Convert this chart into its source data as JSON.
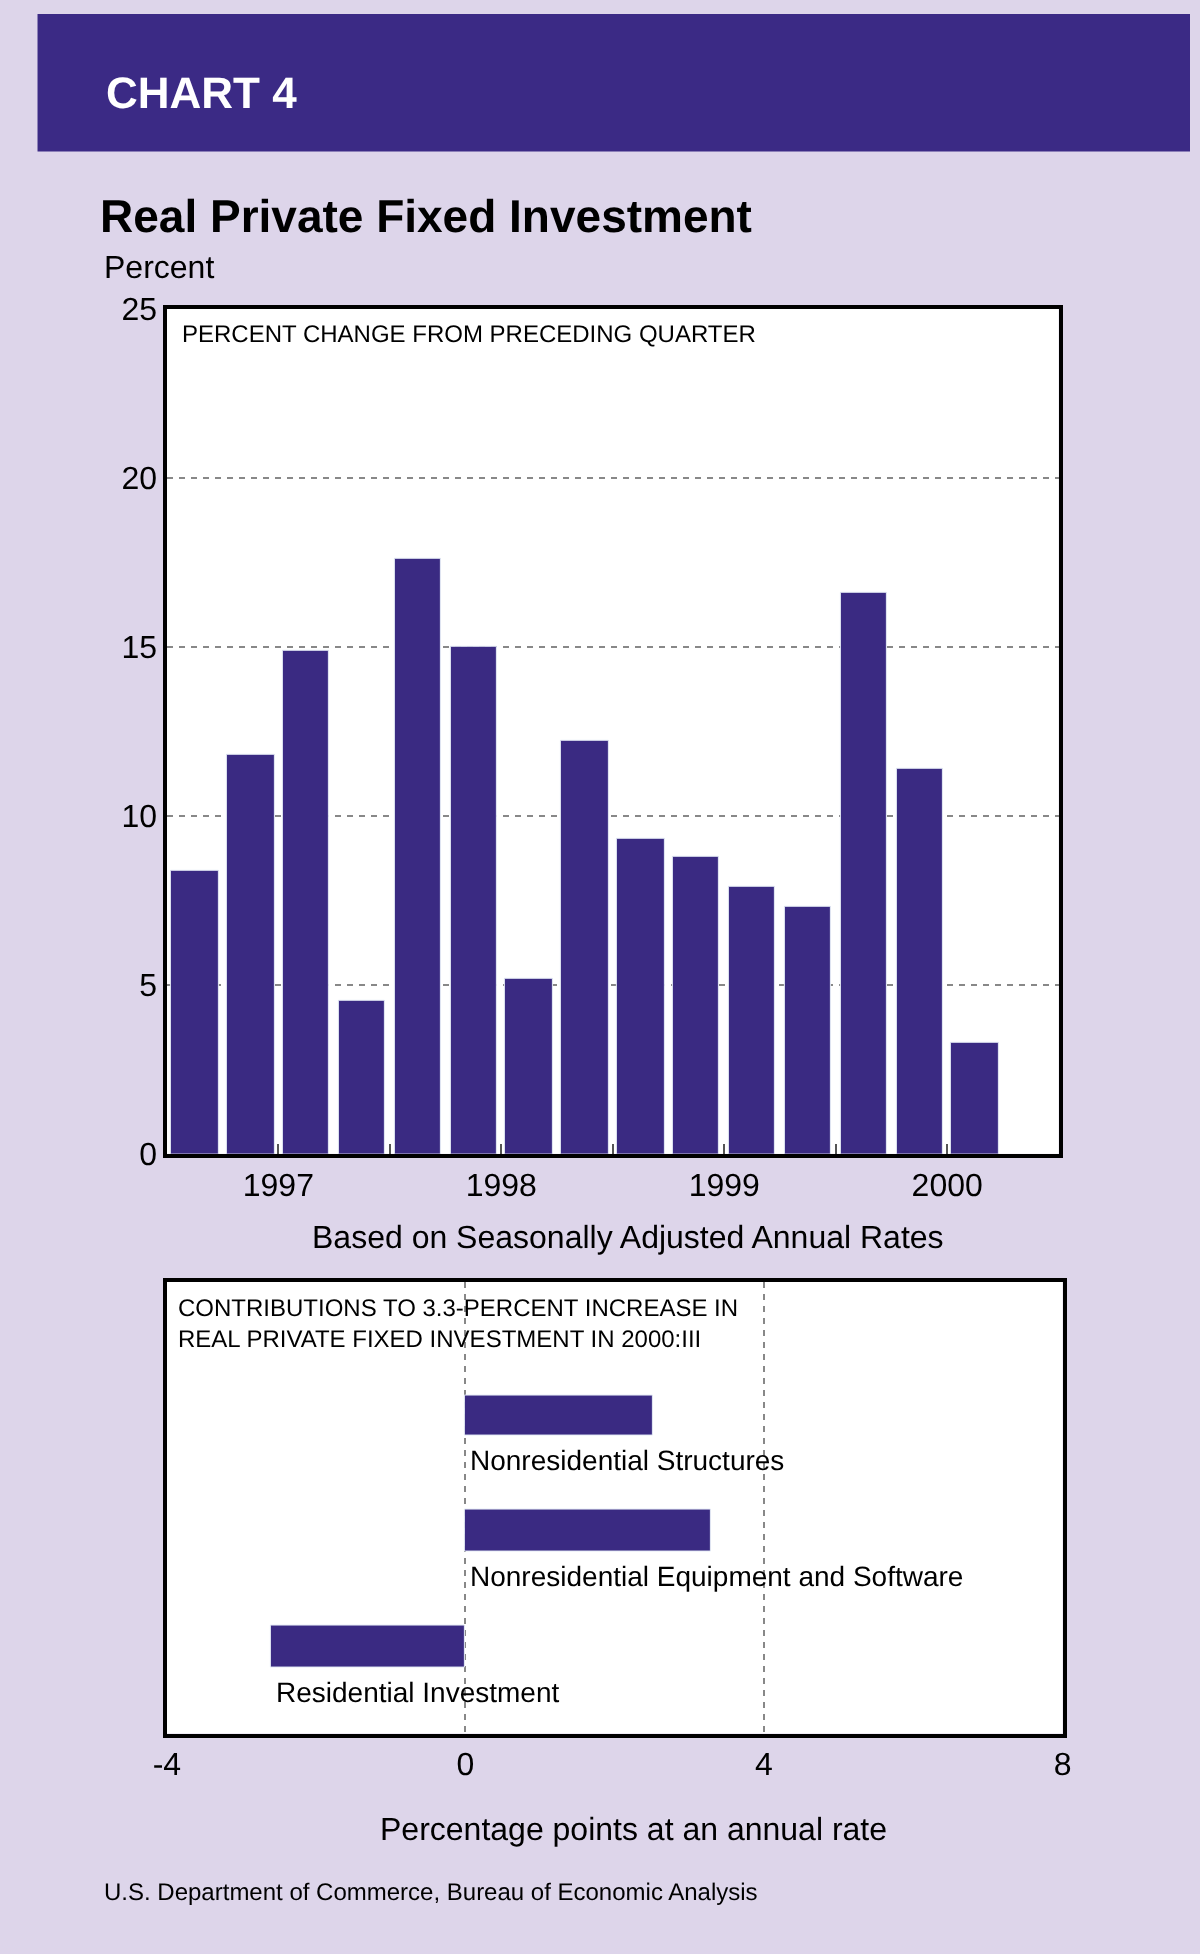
{
  "chart_data": [
    {
      "type": "bar",
      "title": "CHART 4",
      "subtitle": "Real Private Fixed Investment",
      "ylabel": "Percent",
      "xlabel": "Based on Seasonally Adjusted Annual Rates",
      "annotations": [
        "PERCENT CHANGE FROM PRECEDING QUARTER"
      ],
      "x": [
        1997.125,
        1997.375,
        1997.625,
        1997.875,
        1998.125,
        1998.375,
        1998.625,
        1998.875,
        1999.125,
        1999.375,
        1999.625,
        1999.875,
        2000.125,
        2000.375,
        2000.625
      ],
      "values": [
        8.4,
        11.8,
        14.9,
        4.5,
        17.6,
        15.0,
        5.2,
        12.2,
        9.3,
        8.8,
        7.9,
        7.3,
        16.6,
        11.4,
        3.3
      ],
      "color": "#3a2a82",
      "xlim": [
        1997,
        2001
      ],
      "xticks": [
        {
          "value": 1997.5,
          "label": "1997"
        },
        {
          "value": 1998,
          "label": null
        },
        {
          "value": 1998.5,
          "label": "1998"
        },
        {
          "value": 1999,
          "label": null
        },
        {
          "value": 1999.5,
          "label": "1999"
        },
        {
          "value": 2000,
          "label": null
        },
        {
          "value": 2000.5,
          "label": "2000"
        },
        {
          "value": 2001,
          "label": null
        }
      ],
      "ylim": [
        0,
        25
      ],
      "yticks": [
        0,
        5,
        10,
        15,
        20,
        25
      ],
      "grid": "y"
    },
    {
      "type": "bar",
      "orientation": "horizontal",
      "title": "CONTRIBUTIONS TO 3.3-PERCENT INCREASE IN\nREAL PRIVATE FIXED INVESTMENT IN 2000:III",
      "xlabel": "Percentage points at an annual rate",
      "annotations": [
        "U.S. Department of Commerce, Bureau of Economic Analysis"
      ],
      "categories": [
        "Nonresidential Structures",
        "Nonresidential Equipment and Software",
        "Residential Investment"
      ],
      "values": [
        2.5,
        3.3,
        -2.6
      ],
      "color": "#3a2a82",
      "xlim": [
        -4,
        8
      ],
      "xticks": [
        -4,
        0,
        4,
        8
      ],
      "grid": "x"
    }
  ]
}
